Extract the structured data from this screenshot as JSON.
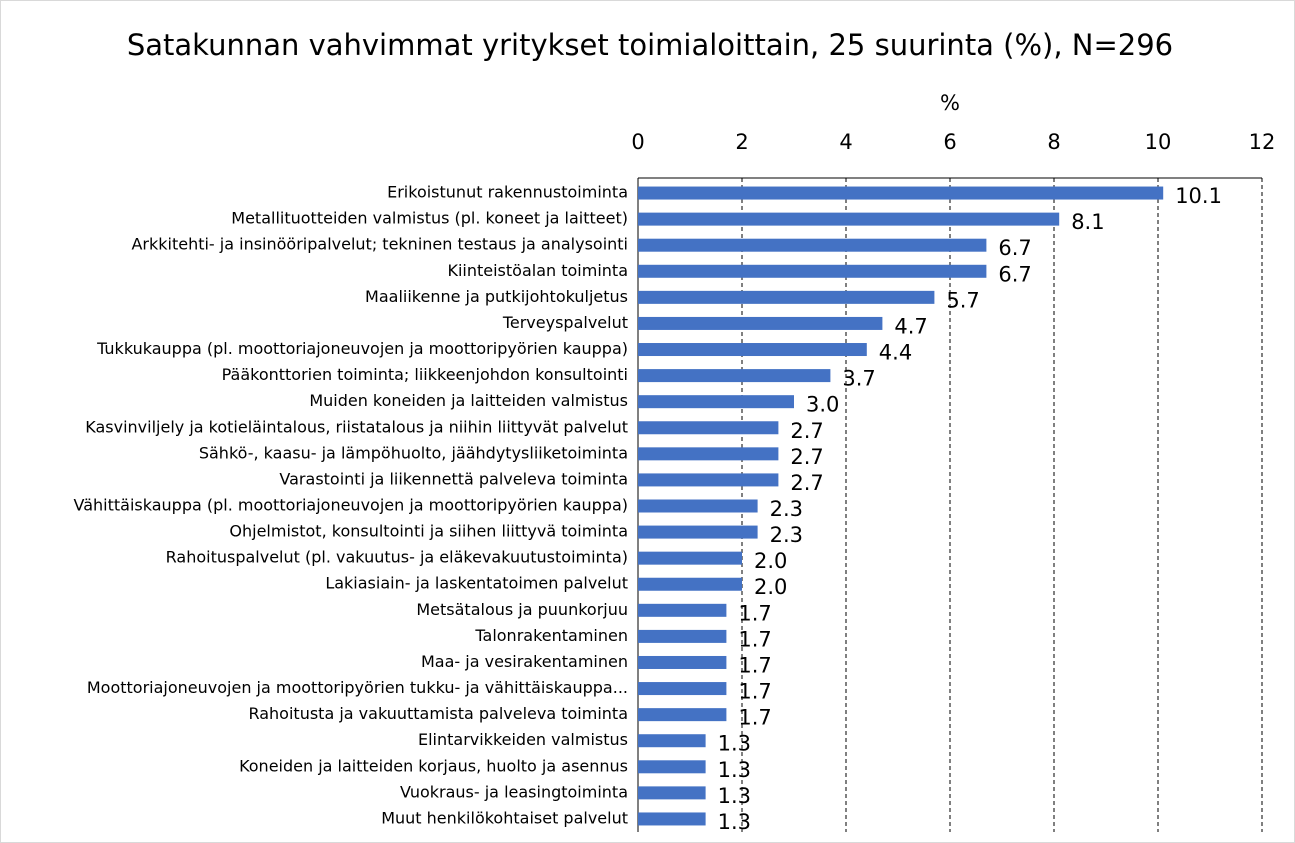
{
  "chart_data": {
    "type": "bar",
    "orientation": "horizontal",
    "title": "Satakunnan vahvimmat yritykset toimialoittain, 25 suurinta (%), N=296",
    "x_label": "%",
    "categories": [
      "Erikoistunut rakennustoiminta",
      "Metallituotteiden valmistus (pl. koneet ja laitteet)",
      "Arkkitehti- ja insinööripalvelut; tekninen testaus ja analysointi",
      "Kiinteistöalan toiminta",
      "Maaliikenne ja putkijohtokuljetus",
      "Terveyspalvelut",
      "Tukkukauppa (pl. moottoriajoneuvojen ja moottoripyörien kauppa)",
      "Pääkonttorien toiminta; liikkeenjohdon konsultointi",
      "Muiden koneiden ja laitteiden valmistus",
      "Kasvinviljely ja kotieläintalous, riistatalous ja niihin liittyvät palvelut",
      "Sähkö-, kaasu- ja lämpöhuolto, jäähdytysliiketoiminta",
      "Varastointi ja liikennettä palveleva toiminta",
      "Vähittäiskauppa (pl. moottoriajoneuvojen ja moottoripyörien kauppa)",
      "Ohjelmistot, konsultointi ja siihen liittyvä toiminta",
      "Rahoituspalvelut (pl. vakuutus- ja eläkevakuutustoiminta)",
      "Lakiasiain- ja laskentatoimen palvelut",
      "Metsätalous ja puunkorjuu",
      "Talonrakentaminen",
      "Maa- ja vesirakentaminen",
      "Moottoriajoneuvojen ja moottoripyörien tukku- ja vähittäiskauppa...",
      "Rahoitusta ja vakuuttamista palveleva toiminta",
      "Elintarvikkeiden valmistus",
      "Koneiden ja laitteiden korjaus, huolto ja asennus",
      "Vuokraus- ja leasingtoiminta",
      "Muut henkilökohtaiset palvelut"
    ],
    "values": [
      10.1,
      8.1,
      6.7,
      6.7,
      5.7,
      4.7,
      4.4,
      3.7,
      3.0,
      2.7,
      2.7,
      2.7,
      2.3,
      2.3,
      2.0,
      2.0,
      1.7,
      1.7,
      1.7,
      1.7,
      1.7,
      1.3,
      1.3,
      1.3,
      1.3
    ],
    "value_labels": [
      "10.1",
      "8.1",
      "6.7",
      "6.7",
      "5.7",
      "4.7",
      "4.4",
      "3.7",
      "3.0",
      "2.7",
      "2.7",
      "2.7",
      "2.3",
      "2.3",
      "2.0",
      "2.0",
      "1.7",
      "1.7",
      "1.7",
      "1.7",
      "1.7",
      "1.3",
      "1.3",
      "1.3",
      "1.3"
    ],
    "color": "#4472c4",
    "xlim": [
      0,
      12
    ],
    "xticks": [
      0,
      2,
      4,
      6,
      8,
      10,
      12
    ],
    "grid": true
  }
}
